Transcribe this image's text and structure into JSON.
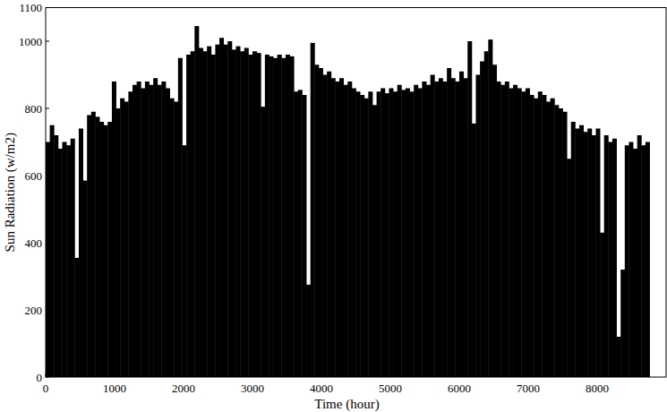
{
  "chart_data": {
    "type": "bar",
    "x_label": "Time (hour)",
    "y_label": "Sun Radiation (w/m2)",
    "color": "#000000",
    "grid": false,
    "xlim": [
      0,
      9000
    ],
    "ylim": [
      0,
      1100
    ],
    "xticks": [
      0,
      1000,
      2000,
      3000,
      4000,
      5000,
      6000,
      7000,
      8000
    ],
    "yticks": [
      0,
      200,
      400,
      600,
      800,
      1000,
      1100
    ],
    "x": [
      0,
      60,
      120,
      180,
      240,
      300,
      360,
      420,
      480,
      540,
      600,
      660,
      720,
      780,
      840,
      900,
      960,
      1020,
      1080,
      1140,
      1200,
      1260,
      1320,
      1380,
      1440,
      1500,
      1560,
      1620,
      1680,
      1740,
      1800,
      1860,
      1920,
      1980,
      2040,
      2100,
      2160,
      2220,
      2280,
      2340,
      2400,
      2460,
      2520,
      2580,
      2640,
      2700,
      2760,
      2820,
      2880,
      2940,
      3000,
      3060,
      3120,
      3180,
      3240,
      3300,
      3360,
      3420,
      3480,
      3540,
      3600,
      3660,
      3720,
      3780,
      3840,
      3900,
      3960,
      4020,
      4080,
      4140,
      4200,
      4260,
      4320,
      4380,
      4440,
      4500,
      4560,
      4620,
      4680,
      4740,
      4800,
      4860,
      4920,
      4980,
      5040,
      5100,
      5160,
      5220,
      5280,
      5340,
      5400,
      5460,
      5520,
      5580,
      5640,
      5700,
      5760,
      5820,
      5880,
      5940,
      6000,
      6060,
      6120,
      6180,
      6240,
      6300,
      6360,
      6420,
      6480,
      6540,
      6600,
      6660,
      6720,
      6780,
      6840,
      6900,
      6960,
      7020,
      7080,
      7140,
      7200,
      7260,
      7320,
      7380,
      7440,
      7500,
      7560,
      7620,
      7680,
      7740,
      7800,
      7860,
      7920,
      7980,
      8040,
      8100,
      8160,
      8220,
      8280,
      8340,
      8400,
      8460,
      8520,
      8580,
      8640,
      8700
    ],
    "values": [
      700,
      750,
      720,
      680,
      700,
      690,
      710,
      355,
      740,
      585,
      780,
      790,
      775,
      760,
      750,
      760,
      880,
      800,
      830,
      820,
      850,
      870,
      880,
      860,
      880,
      870,
      890,
      870,
      880,
      860,
      830,
      820,
      950,
      690,
      960,
      970,
      1045,
      980,
      970,
      985,
      960,
      990,
      1010,
      990,
      1000,
      975,
      985,
      970,
      980,
      960,
      970,
      965,
      805,
      960,
      955,
      950,
      960,
      950,
      960,
      955,
      850,
      855,
      840,
      275,
      995,
      930,
      920,
      900,
      910,
      890,
      880,
      890,
      870,
      880,
      860,
      850,
      840,
      830,
      850,
      810,
      850,
      860,
      845,
      860,
      850,
      870,
      855,
      860,
      850,
      870,
      860,
      880,
      870,
      900,
      880,
      890,
      880,
      920,
      890,
      880,
      910,
      890,
      1000,
      755,
      900,
      940,
      970,
      1005,
      930,
      880,
      870,
      880,
      860,
      870,
      860,
      850,
      860,
      840,
      830,
      850,
      840,
      820,
      830,
      810,
      800,
      790,
      650,
      760,
      740,
      750,
      730,
      740,
      720,
      740,
      430,
      720,
      700,
      710,
      120,
      320,
      690,
      700,
      680,
      720,
      690,
      700
    ]
  }
}
